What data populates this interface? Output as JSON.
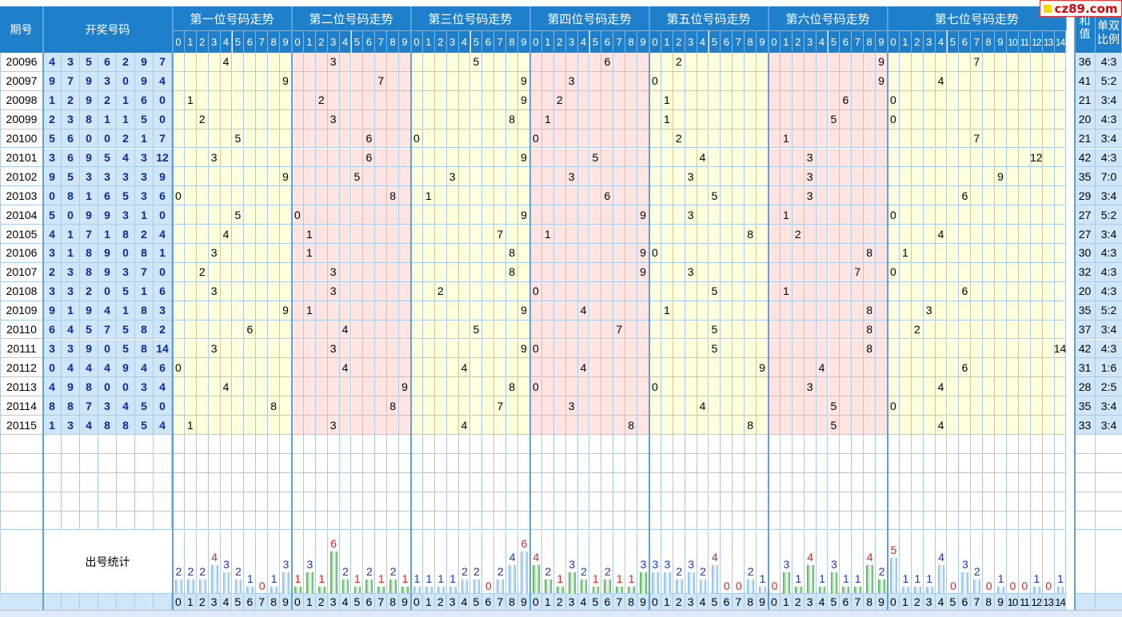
{
  "site_logo": "cz89.com",
  "headers": {
    "period": "期号",
    "draw_numbers": "开奖号码",
    "sum_label": "和值",
    "parity_label": "单双比例",
    "stats_label": "出号统计"
  },
  "colors": {
    "header_bg": "#1e7fcb",
    "zone_yellow": "#ffffdc",
    "zone_pink": "#ffe4e1",
    "draw_bg": "#cfe5f8",
    "draw_text": "#0a2a9a",
    "grid": "#a9cbe9",
    "bar_blue": "#7db9ee",
    "bar_green": "#43b04a",
    "label_blue": "#1f2fd0",
    "label_red": "#e02020"
  },
  "chart_data": {
    "type": "table",
    "positions": [
      {
        "title": "第一位号码走势",
        "max": 9
      },
      {
        "title": "第二位号码走势",
        "max": 9
      },
      {
        "title": "第三位号码走势",
        "max": 9
      },
      {
        "title": "第四位号码走势",
        "max": 9
      },
      {
        "title": "第五位号码走势",
        "max": 9
      },
      {
        "title": "第六位号码走势",
        "max": 9
      },
      {
        "title": "第七位号码走势",
        "max": 14
      }
    ],
    "rows": [
      {
        "period": "20096",
        "numbers": [
          4,
          3,
          5,
          6,
          2,
          9,
          7
        ],
        "sum": 36,
        "ratio": "4:3"
      },
      {
        "period": "20097",
        "numbers": [
          9,
          7,
          9,
          3,
          0,
          9,
          4
        ],
        "sum": 41,
        "ratio": "5:2"
      },
      {
        "period": "20098",
        "numbers": [
          1,
          2,
          9,
          2,
          1,
          6,
          0
        ],
        "sum": 21,
        "ratio": "3:4"
      },
      {
        "period": "20099",
        "numbers": [
          2,
          3,
          8,
          1,
          1,
          5,
          0
        ],
        "sum": 20,
        "ratio": "4:3"
      },
      {
        "period": "20100",
        "numbers": [
          5,
          6,
          0,
          0,
          2,
          1,
          7
        ],
        "sum": 21,
        "ratio": "3:4"
      },
      {
        "period": "20101",
        "numbers": [
          3,
          6,
          9,
          5,
          4,
          3,
          12
        ],
        "sum": 42,
        "ratio": "4:3"
      },
      {
        "period": "20102",
        "numbers": [
          9,
          5,
          3,
          3,
          3,
          3,
          9
        ],
        "sum": 35,
        "ratio": "7:0"
      },
      {
        "period": "20103",
        "numbers": [
          0,
          8,
          1,
          6,
          5,
          3,
          6
        ],
        "sum": 29,
        "ratio": "3:4"
      },
      {
        "period": "20104",
        "numbers": [
          5,
          0,
          9,
          9,
          3,
          1,
          0
        ],
        "sum": 27,
        "ratio": "5:2"
      },
      {
        "period": "20105",
        "numbers": [
          4,
          1,
          7,
          1,
          8,
          2,
          4
        ],
        "sum": 27,
        "ratio": "3:4"
      },
      {
        "period": "20106",
        "numbers": [
          3,
          1,
          8,
          9,
          0,
          8,
          1
        ],
        "sum": 30,
        "ratio": "4:3"
      },
      {
        "period": "20107",
        "numbers": [
          2,
          3,
          8,
          9,
          3,
          7,
          0
        ],
        "sum": 32,
        "ratio": "4:3"
      },
      {
        "period": "20108",
        "numbers": [
          3,
          3,
          2,
          0,
          5,
          1,
          6
        ],
        "sum": 20,
        "ratio": "4:3"
      },
      {
        "period": "20109",
        "numbers": [
          9,
          1,
          9,
          4,
          1,
          8,
          3
        ],
        "sum": 35,
        "ratio": "5:2"
      },
      {
        "period": "20110",
        "numbers": [
          6,
          4,
          5,
          7,
          5,
          8,
          2
        ],
        "sum": 37,
        "ratio": "3:4"
      },
      {
        "period": "20111",
        "numbers": [
          3,
          3,
          9,
          0,
          5,
          8,
          14
        ],
        "sum": 42,
        "ratio": "4:3"
      },
      {
        "period": "20112",
        "numbers": [
          0,
          4,
          4,
          4,
          9,
          4,
          6
        ],
        "sum": 31,
        "ratio": "1:6"
      },
      {
        "period": "20113",
        "numbers": [
          4,
          9,
          8,
          0,
          0,
          3,
          4
        ],
        "sum": 28,
        "ratio": "2:5"
      },
      {
        "period": "20114",
        "numbers": [
          8,
          8,
          7,
          3,
          4,
          5,
          0
        ],
        "sum": 35,
        "ratio": "3:4"
      },
      {
        "period": "20115",
        "numbers": [
          1,
          3,
          4,
          8,
          8,
          5,
          4
        ],
        "sum": 33,
        "ratio": "3:4"
      }
    ],
    "stats": [
      [
        2,
        2,
        2,
        4,
        3,
        2,
        1,
        0,
        1,
        3
      ],
      [
        1,
        3,
        1,
        6,
        2,
        1,
        2,
        1,
        2,
        1
      ],
      [
        1,
        1,
        1,
        1,
        2,
        2,
        0,
        2,
        4,
        6
      ],
      [
        4,
        2,
        1,
        3,
        2,
        1,
        2,
        1,
        1,
        3
      ],
      [
        3,
        3,
        2,
        3,
        2,
        4,
        0,
        0,
        2,
        1
      ],
      [
        0,
        3,
        1,
        4,
        1,
        3,
        1,
        1,
        4,
        2
      ],
      [
        5,
        1,
        1,
        1,
        4,
        0,
        3,
        2,
        0,
        1,
        0,
        0,
        1,
        0,
        1
      ]
    ]
  }
}
